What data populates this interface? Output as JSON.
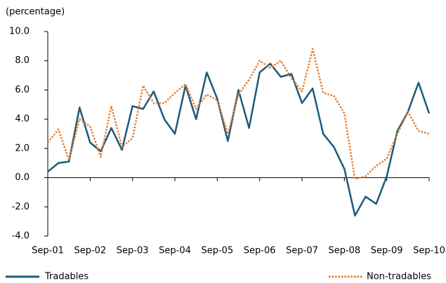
{
  "chart_data": {
    "type": "line",
    "y_axis_label": "(percentage)",
    "categories": [
      "Sep-01",
      null,
      null,
      null,
      "Sep-02",
      null,
      null,
      null,
      "Sep-03",
      null,
      null,
      null,
      "Sep-04",
      null,
      null,
      null,
      "Sep-05",
      null,
      null,
      null,
      "Sep-06",
      null,
      null,
      null,
      "Sep-07",
      null,
      null,
      null,
      "Sep-08",
      null,
      null,
      null,
      "Sep-09",
      null,
      null,
      null,
      "Sep-10"
    ],
    "series": [
      {
        "name": "Tradables",
        "color": "#1d5a7a",
        "style": "solid",
        "values": [
          0.4,
          1.0,
          1.1,
          4.8,
          2.4,
          1.8,
          3.4,
          1.9,
          4.9,
          4.7,
          5.9,
          4.0,
          3.0,
          6.3,
          4.0,
          7.2,
          5.4,
          2.5,
          6.0,
          3.4,
          7.2,
          7.8,
          6.9,
          7.1,
          5.1,
          6.1,
          3.0,
          2.1,
          0.6,
          -2.6,
          -1.3,
          -1.8,
          0.1,
          3.2,
          4.5,
          6.5,
          4.4
        ]
      },
      {
        "name": "Non-tradables",
        "color": "#e87d2a",
        "style": "dotted",
        "values": [
          2.4,
          3.3,
          1.2,
          4.0,
          3.5,
          1.4,
          4.9,
          2.1,
          2.7,
          6.3,
          5.1,
          5.1,
          5.8,
          6.4,
          4.7,
          5.7,
          5.3,
          3.0,
          5.7,
          6.7,
          8.0,
          7.5,
          8.0,
          6.8,
          5.9,
          8.8,
          5.8,
          5.6,
          4.4,
          -0.1,
          0.1,
          0.8,
          1.3,
          3.0,
          4.5,
          3.2,
          3.0
        ]
      }
    ],
    "ylim": [
      -4,
      10
    ],
    "yticks": [
      {
        "value": -4,
        "label": "-4.0"
      },
      {
        "value": -2,
        "label": "-2.0"
      },
      {
        "value": 0,
        "label": "0.0"
      },
      {
        "value": 2,
        "label": "2.0"
      },
      {
        "value": 4,
        "label": "4.0"
      },
      {
        "value": 6,
        "label": "6.0"
      },
      {
        "value": 8,
        "label": "8.0"
      },
      {
        "value": 10,
        "label": "10.0"
      }
    ],
    "grid": false
  }
}
